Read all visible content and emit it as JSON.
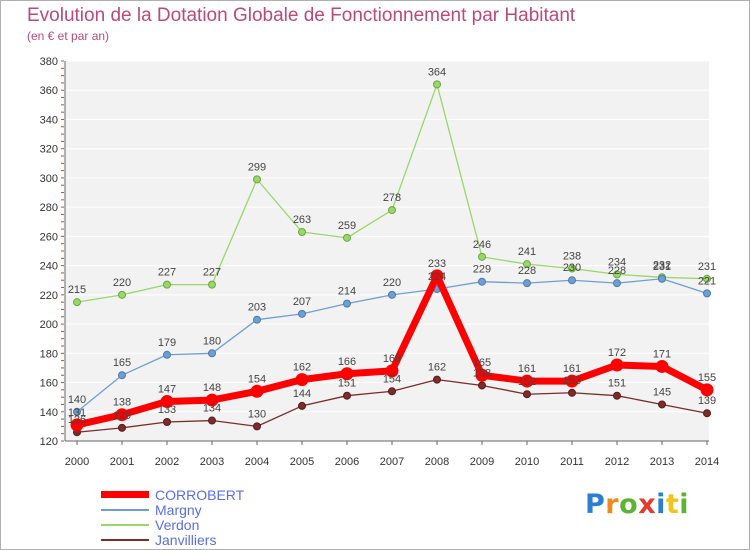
{
  "header": {
    "title": "Evolution de la Dotation Globale de Fonctionnement par Habitant",
    "subtitle": "(en € et par an)"
  },
  "logo": {
    "text": "Proxiti"
  },
  "chart_data": {
    "type": "line",
    "title": "Evolution de la Dotation Globale de Fonctionnement par Habitant",
    "subtitle": "(en € et par an)",
    "xlabel": "",
    "ylabel": "",
    "ylim": [
      120,
      380
    ],
    "yticks": [
      120,
      140,
      160,
      180,
      200,
      220,
      240,
      260,
      280,
      300,
      320,
      340,
      360,
      380
    ],
    "categories": [
      "2000",
      "2001",
      "2002",
      "2003",
      "2004",
      "2005",
      "2006",
      "2007",
      "2008",
      "2009",
      "2010",
      "2011",
      "2012",
      "2013",
      "2014"
    ],
    "grid": "horizontal",
    "legend_position": "bottom-left",
    "series": [
      {
        "name": "CORROBERT",
        "color": "#ff0000",
        "values": [
          131,
          138,
          147,
          148,
          154,
          162,
          166,
          168,
          233,
          165,
          161,
          161,
          172,
          171,
          155
        ]
      },
      {
        "name": "Margny",
        "color": "#6f9fd0",
        "values": [
          140,
          165,
          179,
          180,
          203,
          207,
          214,
          220,
          224,
          229,
          228,
          230,
          228,
          231,
          221
        ]
      },
      {
        "name": "Verdon",
        "color": "#9ad66b",
        "values": [
          215,
          220,
          227,
          227,
          299,
          263,
          259,
          278,
          364,
          246,
          241,
          238,
          234,
          232,
          231
        ]
      },
      {
        "name": "Janvilliers",
        "color": "#7b2c2c",
        "values": [
          126,
          129,
          133,
          134,
          130,
          144,
          151,
          154,
          162,
          158,
          152,
          153,
          151,
          145,
          139
        ]
      }
    ]
  }
}
